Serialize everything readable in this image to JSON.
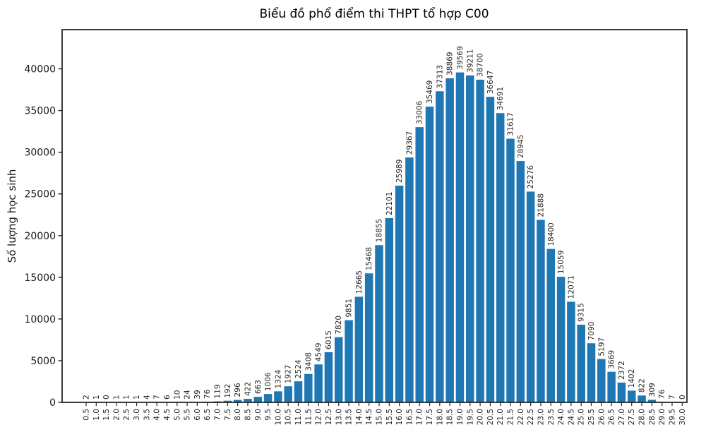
{
  "figure": {
    "background": "#ffffff"
  },
  "chart_data": {
    "type": "bar",
    "title": "Biểu đồ phổ điểm thi THPT tổ hợp C00",
    "xlabel": "",
    "ylabel": "Số lượng học sinh",
    "categories": [
      "0.5",
      "1.0",
      "1.5",
      "2.0",
      "2.5",
      "3.0",
      "3.5",
      "4.0",
      "4.5",
      "5.0",
      "5.5",
      "6.0",
      "6.5",
      "7.0",
      "7.5",
      "8.0",
      "8.5",
      "9.0",
      "9.5",
      "10.0",
      "10.5",
      "11.0",
      "11.5",
      "12.0",
      "12.5",
      "13.0",
      "13.5",
      "14.0",
      "14.5",
      "15.0",
      "15.5",
      "16.0",
      "16.5",
      "17.0",
      "17.5",
      "18.0",
      "18.5",
      "19.0",
      "19.5",
      "20.0",
      "20.5",
      "21.0",
      "21.5",
      "22.0",
      "22.5",
      "23.0",
      "23.5",
      "24.0",
      "24.5",
      "25.0",
      "25.5",
      "26.0",
      "26.5",
      "27.0",
      "27.5",
      "28.0",
      "28.5",
      "29.0",
      "29.5",
      "30.0"
    ],
    "values": [
      2,
      1,
      0,
      1,
      1,
      1,
      4,
      7,
      6,
      10,
      24,
      39,
      76,
      119,
      192,
      296,
      422,
      663,
      1006,
      1324,
      1927,
      2524,
      3408,
      4549,
      6015,
      7820,
      9851,
      12665,
      15468,
      18855,
      22101,
      25989,
      29367,
      33006,
      35469,
      37313,
      38869,
      39569,
      39211,
      38700,
      36647,
      34691,
      31617,
      28945,
      25276,
      21888,
      18400,
      15059,
      12071,
      9315,
      7090,
      5197,
      3669,
      2372,
      1402,
      822,
      309,
      76,
      7,
      0
    ],
    "yticks": [
      0,
      5000,
      10000,
      15000,
      20000,
      25000,
      30000,
      35000,
      40000
    ],
    "ylim": [
      0,
      44700
    ],
    "bar_color": "#1f77b4",
    "axis_color": "#262626",
    "text_color": "#262626",
    "grid": false,
    "legend": "none",
    "bar_value_labels": true,
    "x_tick_rotation": 90,
    "value_label_rotation": 90
  }
}
